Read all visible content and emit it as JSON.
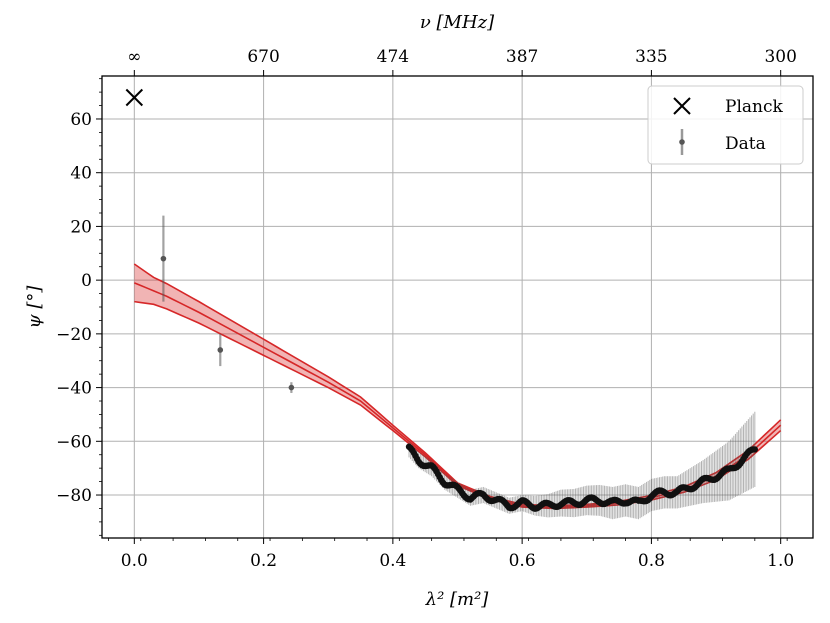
{
  "chart_data": {
    "type": "scatter",
    "title": "",
    "xlabel": "λ² [m²]",
    "ylabel": "ψ [°]",
    "top_xlabel": "ν [MHz]",
    "xlim": [
      -0.05,
      1.05
    ],
    "ylim": [
      -96,
      76
    ],
    "grid": true,
    "legend_position": "top-right",
    "xticks": [
      {
        "value": 0.0,
        "label": "0.0"
      },
      {
        "value": 0.2,
        "label": "0.2"
      },
      {
        "value": 0.4,
        "label": "0.4"
      },
      {
        "value": 0.6,
        "label": "0.6"
      },
      {
        "value": 0.8,
        "label": "0.8"
      },
      {
        "value": 1.0,
        "label": "1.0"
      }
    ],
    "yticks": [
      {
        "value": 60,
        "label": "60"
      },
      {
        "value": 40,
        "label": "40"
      },
      {
        "value": 20,
        "label": "20"
      },
      {
        "value": 0,
        "label": "0"
      },
      {
        "value": -20,
        "label": "−20"
      },
      {
        "value": -40,
        "label": "−40"
      },
      {
        "value": -60,
        "label": "−60"
      },
      {
        "value": -80,
        "label": "−80"
      }
    ],
    "top_ticks": [
      {
        "value": 0.0,
        "label": "∞"
      },
      {
        "value": 0.2,
        "label": "670"
      },
      {
        "value": 0.4,
        "label": "474"
      },
      {
        "value": 0.6,
        "label": "387"
      },
      {
        "value": 0.8,
        "label": "335"
      },
      {
        "value": 1.0,
        "label": "300"
      }
    ],
    "series": [
      {
        "name": "Planck",
        "kind": "marker-x",
        "color": "#000000",
        "points": [
          [
            0.0,
            68
          ]
        ]
      },
      {
        "name": "Data",
        "kind": "errorbar",
        "color": "#555555",
        "sparse": [
          {
            "x": 0.045,
            "y": 8,
            "err": 16
          },
          {
            "x": 0.133,
            "y": -26,
            "err": 6
          },
          {
            "x": 0.243,
            "y": -40,
            "err": 2
          }
        ],
        "dense_profile": [
          [
            0.425,
            -63
          ],
          [
            0.44,
            -67
          ],
          [
            0.46,
            -70
          ],
          [
            0.48,
            -75
          ],
          [
            0.5,
            -78
          ],
          [
            0.52,
            -81
          ],
          [
            0.54,
            -80
          ],
          [
            0.56,
            -82
          ],
          [
            0.58,
            -84
          ],
          [
            0.6,
            -83
          ],
          [
            0.62,
            -84
          ],
          [
            0.64,
            -84
          ],
          [
            0.66,
            -83
          ],
          [
            0.68,
            -83
          ],
          [
            0.7,
            -82
          ],
          [
            0.72,
            -82
          ],
          [
            0.74,
            -83
          ],
          [
            0.76,
            -82
          ],
          [
            0.78,
            -83
          ],
          [
            0.8,
            -80
          ],
          [
            0.82,
            -79
          ],
          [
            0.84,
            -79
          ],
          [
            0.88,
            -75
          ],
          [
            0.9,
            -73
          ],
          [
            0.92,
            -71
          ],
          [
            0.94,
            -67
          ],
          [
            0.96,
            -63
          ]
        ],
        "dense_error_profile": [
          [
            0.425,
            3
          ],
          [
            0.5,
            3
          ],
          [
            0.6,
            3
          ],
          [
            0.66,
            5
          ],
          [
            0.74,
            6
          ],
          [
            0.8,
            6
          ],
          [
            0.84,
            6
          ],
          [
            0.88,
            8
          ],
          [
            0.92,
            11
          ],
          [
            0.96,
            14
          ]
        ]
      },
      {
        "kind": "model-band",
        "color": "#d62728",
        "center": [
          [
            0.0,
            -1
          ],
          [
            0.05,
            -6
          ],
          [
            0.1,
            -12
          ],
          [
            0.15,
            -18.5
          ],
          [
            0.2,
            -25
          ],
          [
            0.25,
            -31.5
          ],
          [
            0.3,
            -38
          ],
          [
            0.35,
            -45
          ],
          [
            0.4,
            -55
          ],
          [
            0.45,
            -65
          ],
          [
            0.5,
            -76
          ],
          [
            0.55,
            -81
          ],
          [
            0.6,
            -84
          ],
          [
            0.65,
            -84.5
          ],
          [
            0.7,
            -84
          ],
          [
            0.75,
            -83
          ],
          [
            0.8,
            -81
          ],
          [
            0.85,
            -78
          ],
          [
            0.9,
            -73
          ],
          [
            0.95,
            -65
          ],
          [
            1.0,
            -54
          ]
        ],
        "half_width": [
          [
            0.0,
            7
          ],
          [
            0.03,
            5
          ],
          [
            0.1,
            4
          ],
          [
            0.2,
            3
          ],
          [
            0.3,
            2
          ],
          [
            0.4,
            1
          ],
          [
            0.5,
            0.5
          ],
          [
            0.7,
            0.5
          ],
          [
            0.85,
            1
          ],
          [
            1.0,
            2
          ]
        ]
      }
    ]
  }
}
